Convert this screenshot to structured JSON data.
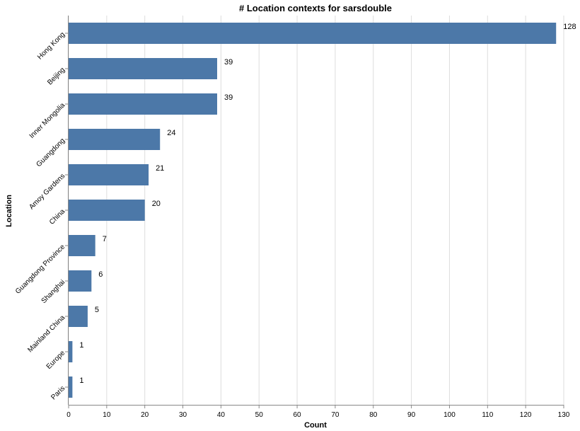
{
  "chart_data": {
    "type": "bar",
    "orientation": "horizontal",
    "title": "# Location contexts for sarsdouble",
    "xlabel": "Count",
    "ylabel": "Location",
    "categories": [
      "Hong Kong",
      "Beijing",
      "Inner Mongolia",
      "Guangdong",
      "Amoy Gardens",
      "China",
      "Guangdong Province",
      "Shanghai",
      "Mainland China",
      "Europe",
      "Paris"
    ],
    "values": [
      128,
      39,
      39,
      24,
      21,
      20,
      7,
      6,
      5,
      1,
      1
    ],
    "data_labels": [
      "128",
      "39",
      "39",
      "24",
      "21",
      "20",
      "7",
      "6",
      "5",
      "1",
      "1"
    ],
    "xlim": [
      0,
      130
    ],
    "xticks": [
      0,
      10,
      20,
      30,
      40,
      50,
      60,
      70,
      80,
      90,
      100,
      110,
      120,
      130
    ],
    "xtick_labels": [
      "0",
      "10",
      "20",
      "30",
      "40",
      "50",
      "60",
      "70",
      "80",
      "90",
      "100",
      "110",
      "120",
      "130"
    ],
    "grid": "vertical",
    "legend": "none",
    "bar_color": "#4c78a8",
    "grid_color": "#dddddd",
    "axis_color": "#888888"
  }
}
